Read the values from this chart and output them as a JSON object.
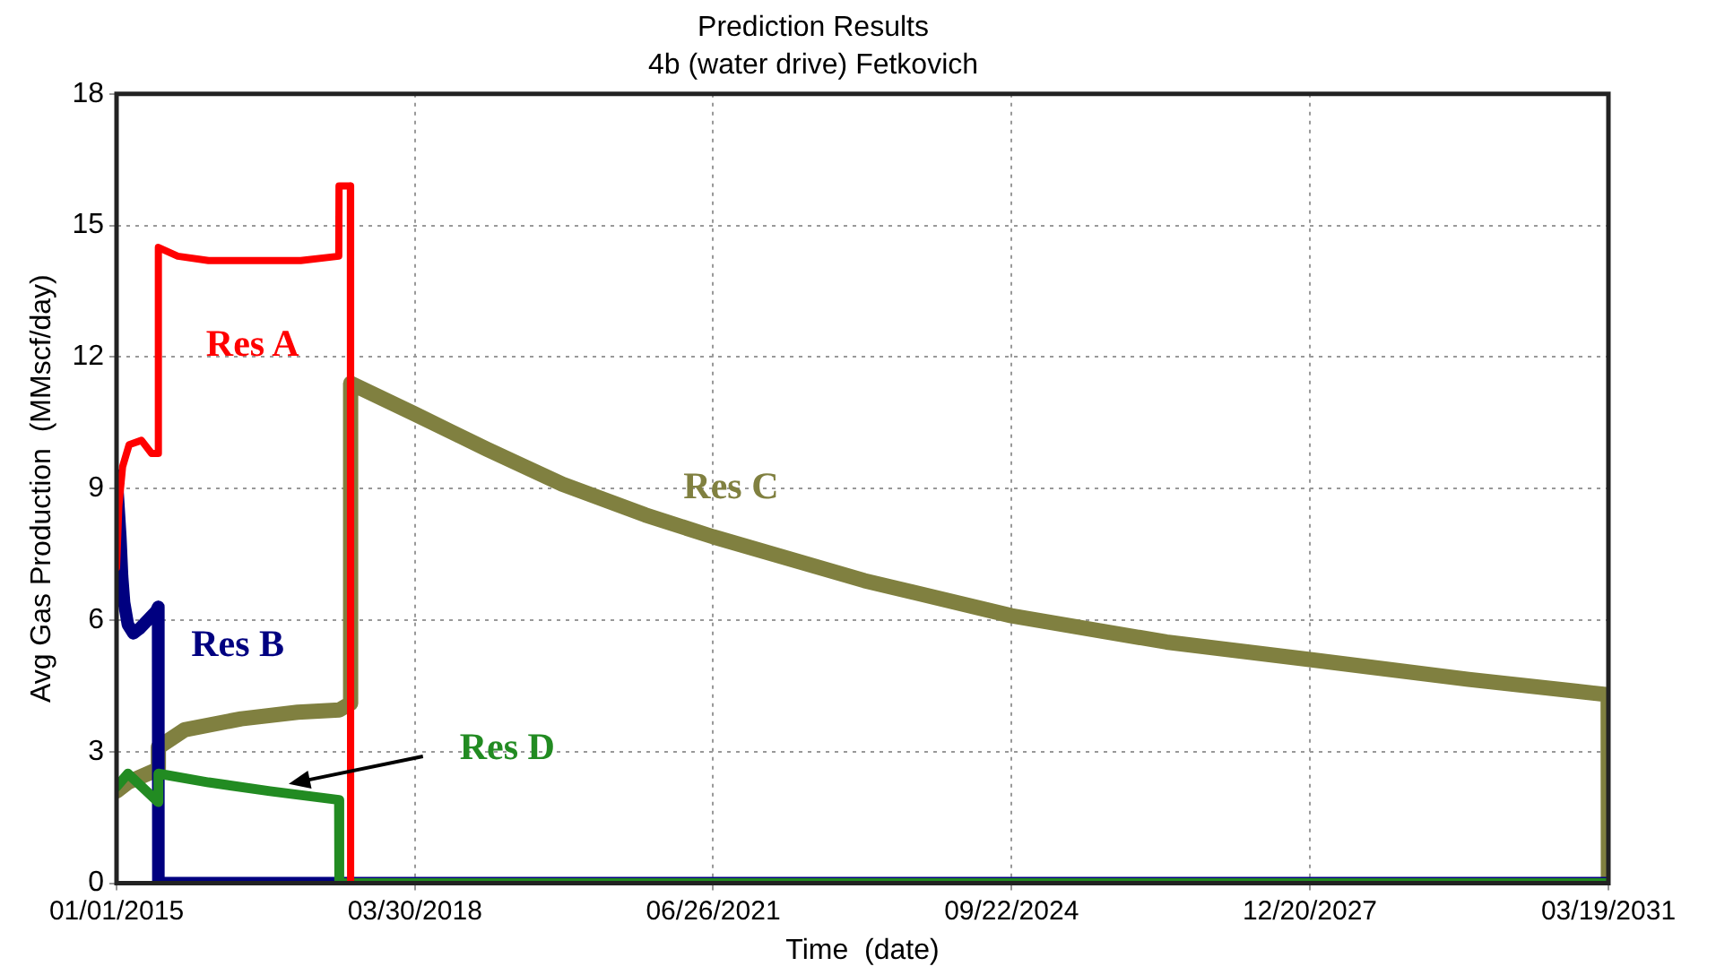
{
  "chart_data": {
    "type": "line",
    "title": "Prediction Results",
    "subtitle": "4b (water drive) Fetkovich",
    "xlabel": "Time  (date)",
    "ylabel": "Avg Gas Production  (MMscf/day)",
    "xlim": [
      "2015-01-01",
      "2031-03-19"
    ],
    "xticks": [
      {
        "value": "2015-01-01",
        "label": "01/01/2015"
      },
      {
        "value": "2018-03-30",
        "label": "03/30/2018"
      },
      {
        "value": "2021-06-26",
        "label": "06/26/2021"
      },
      {
        "value": "2024-09-22",
        "label": "09/22/2024"
      },
      {
        "value": "2027-12-20",
        "label": "12/20/2027"
      },
      {
        "value": "2031-03-19",
        "label": "03/19/2031"
      }
    ],
    "ylim": [
      0,
      18
    ],
    "yticks": [
      0,
      3,
      6,
      9,
      12,
      15,
      18
    ],
    "grid": true,
    "legend": false,
    "line_style": "solid",
    "series": [
      {
        "name": "Res A",
        "color": "#ff0000",
        "x": [
          "2015-01-01",
          "2015-01-10",
          "2015-01-25",
          "2015-02-20",
          "2015-04-10",
          "2015-05-20",
          "2015-06-15",
          "2015-06-16",
          "2015-09-01",
          "2016-01-01",
          "2016-06-01",
          "2017-01-01",
          "2017-06-01",
          "2017-06-02",
          "2017-07-17",
          "2017-07-18"
        ],
        "values": [
          7.2,
          8.6,
          9.5,
          10.0,
          10.1,
          9.8,
          9.8,
          14.5,
          14.3,
          14.2,
          14.2,
          14.2,
          14.3,
          15.9,
          15.9,
          0
        ]
      },
      {
        "name": "Res D",
        "color": "#228b22",
        "x": [
          "2015-01-01",
          "2015-02-15",
          "2015-06-15",
          "2015-06-16",
          "2016-01-01",
          "2016-09-01",
          "2017-06-02",
          "2017-06-03",
          "2031-03-19"
        ],
        "values": [
          2.2,
          2.5,
          1.85,
          2.5,
          2.3,
          2.1,
          1.9,
          0,
          0
        ]
      },
      {
        "name": "Res B",
        "color": "#000080",
        "x": [
          "2015-01-01",
          "2015-01-16",
          "2015-01-23",
          "2015-01-31",
          "2015-02-15",
          "2015-03-09",
          "2015-04-01",
          "2015-06-07",
          "2015-06-15",
          "2015-06-16",
          "2031-03-19"
        ],
        "values": [
          9.3,
          7.9,
          7.0,
          6.4,
          5.9,
          5.7,
          5.8,
          6.2,
          6.3,
          0,
          0
        ]
      },
      {
        "name": "Res C",
        "color": "#808040",
        "x": [
          "2015-01-01",
          "2015-02-15",
          "2015-06-15",
          "2015-06-16",
          "2015-09-28",
          "2016-05-10",
          "2016-12-20",
          "2017-06-03",
          "2017-07-17",
          "2017-07-18",
          "2018-03-30",
          "2019-01-09",
          "2019-11-05",
          "2020-09-29",
          "2021-06-26",
          "2023-02-16",
          "2024-09-22",
          "2026-05-30",
          "2027-12-20",
          "2029-09-10",
          "2031-03-18",
          "2031-03-19"
        ],
        "values": [
          2.1,
          2.3,
          2.6,
          3.1,
          3.5,
          3.75,
          3.9,
          3.95,
          4.1,
          11.4,
          10.7,
          9.9,
          9.1,
          8.4,
          7.9,
          6.9,
          6.1,
          5.5,
          5.1,
          4.65,
          4.3,
          0
        ]
      }
    ]
  }
}
